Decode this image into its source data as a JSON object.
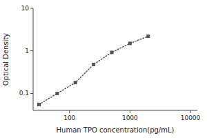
{
  "chart_data": {
    "type": "line",
    "x": [
      31.25,
      62.5,
      125,
      250,
      500,
      1000,
      2000
    ],
    "values": [
      0.055,
      0.1,
      0.18,
      0.48,
      0.92,
      1.5,
      2.2
    ],
    "x_label": "Human TPO concentration(pg/mL)",
    "y_label": "Optical Density",
    "xlim": [
      25,
      13000
    ],
    "ylim": [
      0.04,
      10
    ],
    "xticks": [
      100,
      1000,
      10000
    ],
    "yticks": [
      0.1,
      1,
      10
    ],
    "log": true,
    "grid": false,
    "color": "#555555",
    "marker": "square",
    "line_style": "dotted"
  }
}
